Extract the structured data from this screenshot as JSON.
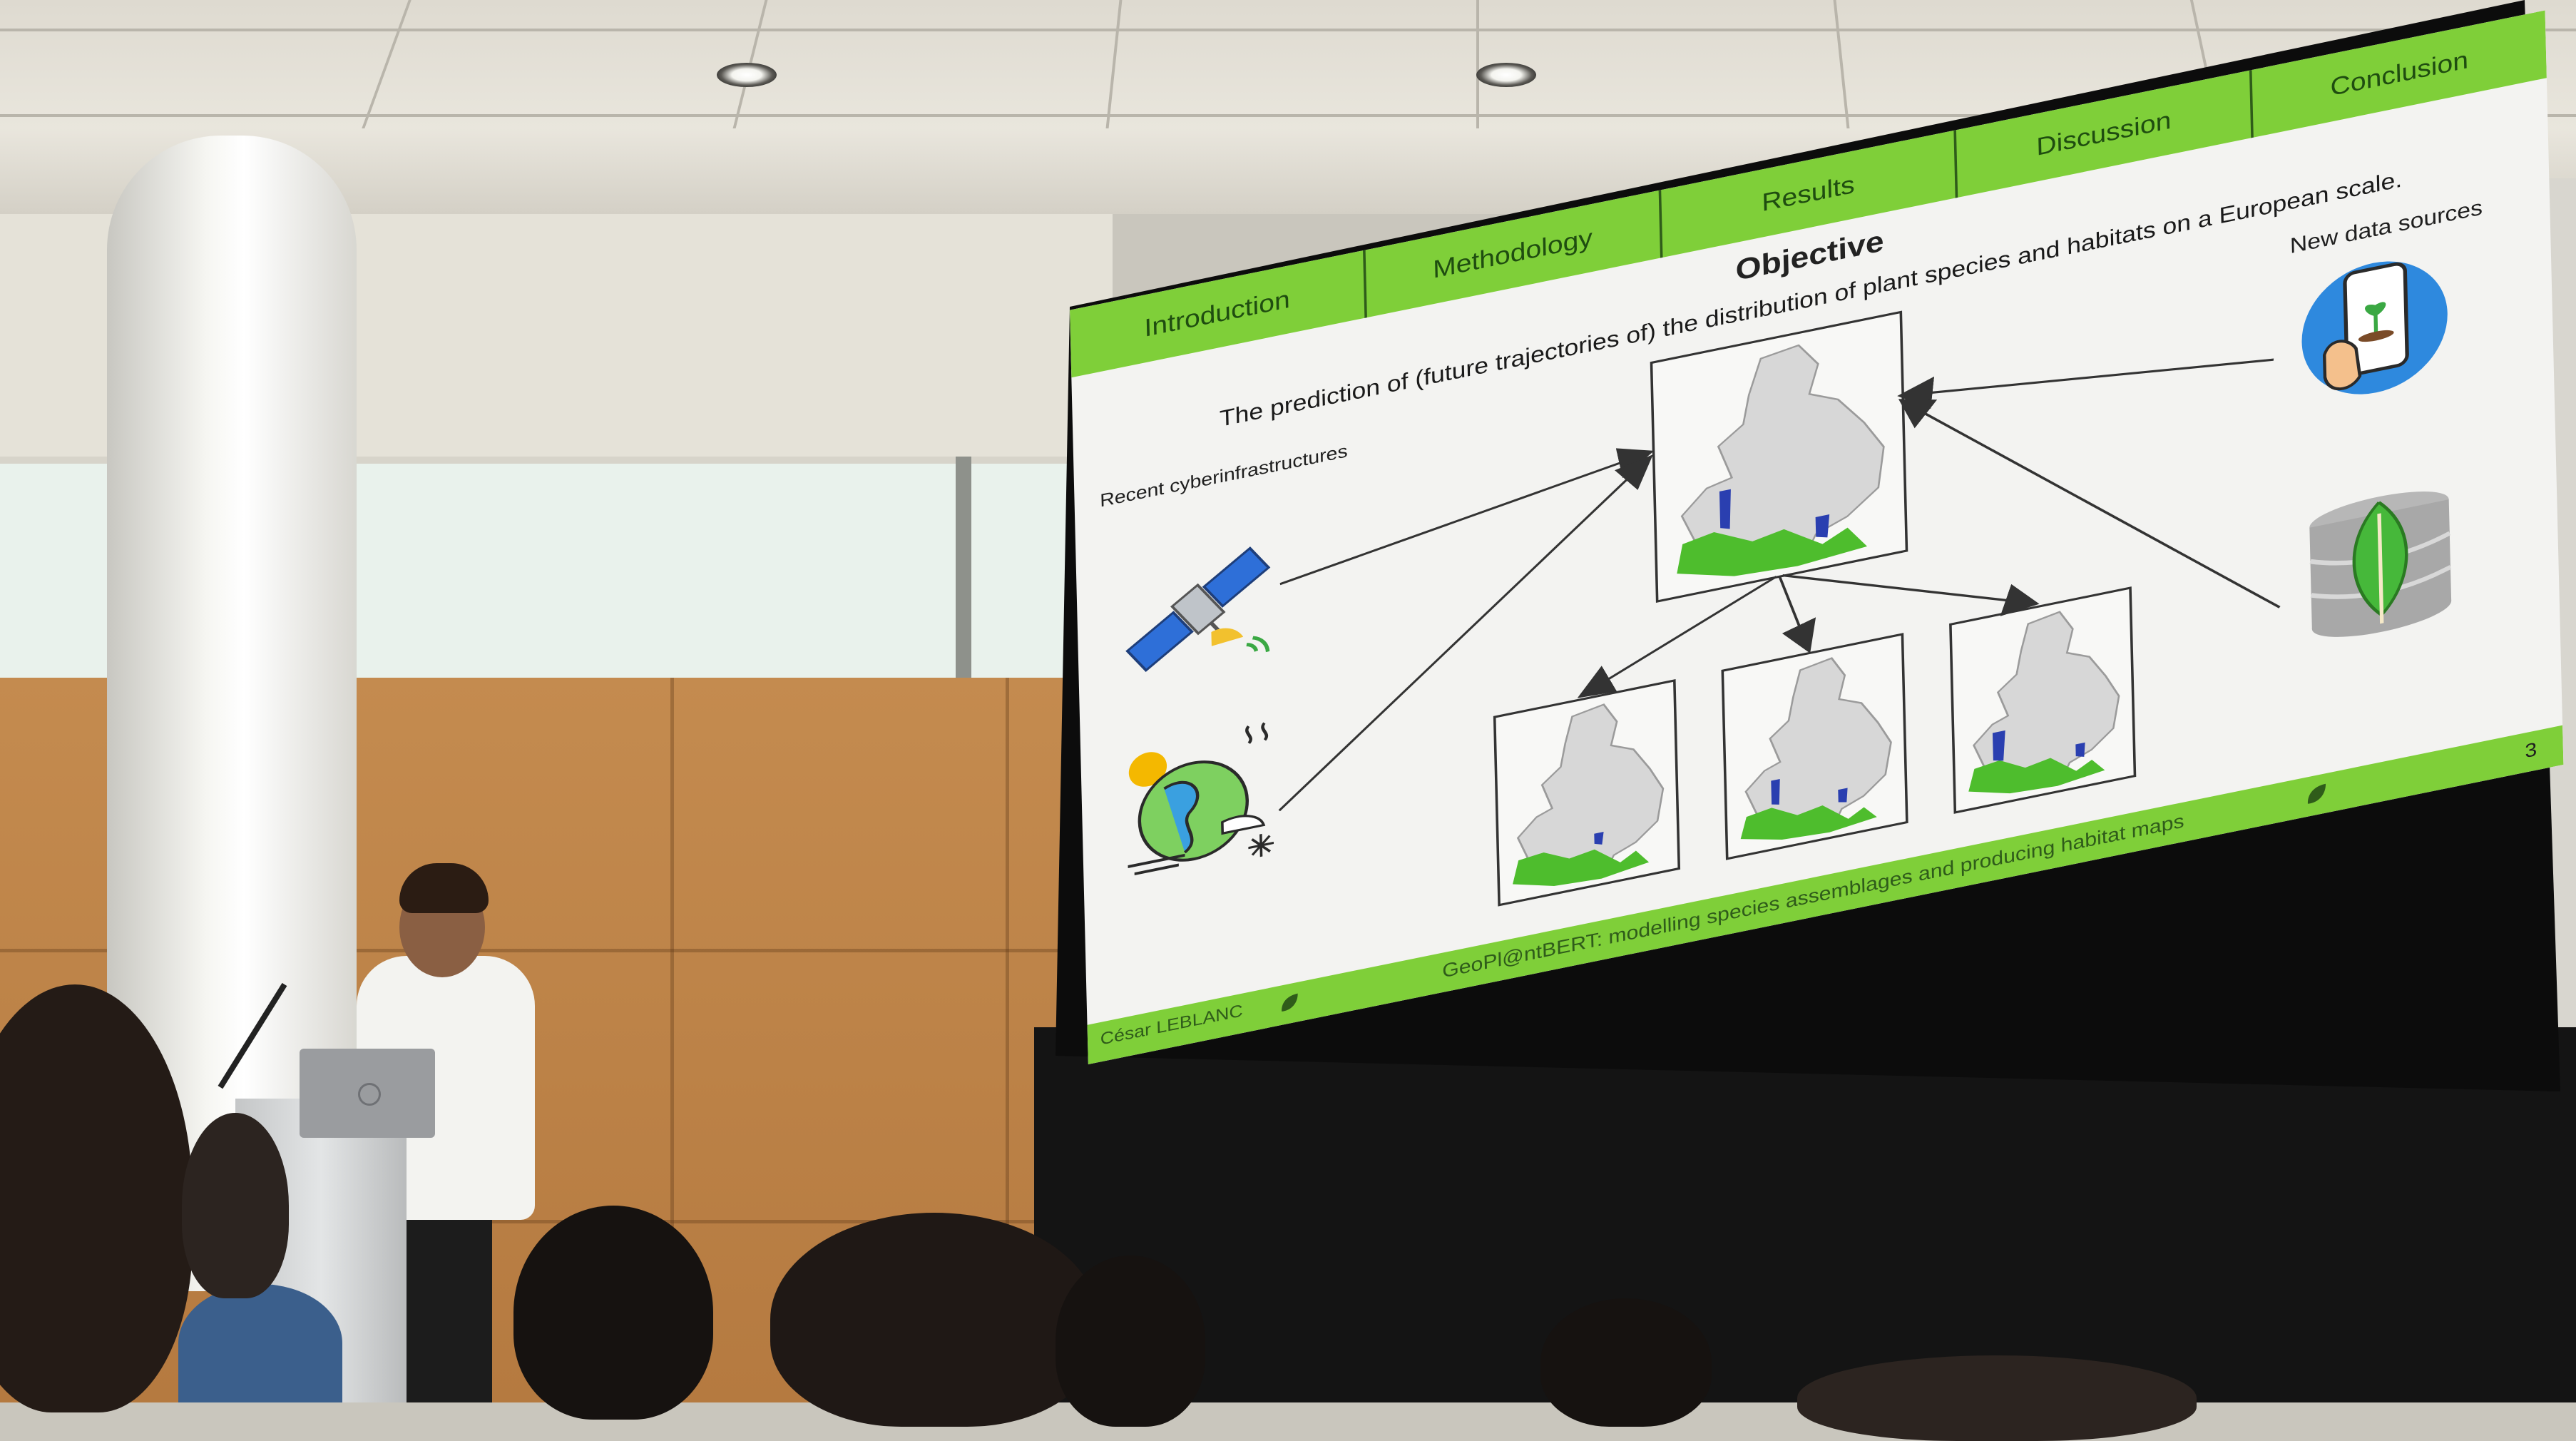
{
  "slide": {
    "nav_tabs": [
      {
        "label": "Introduction"
      },
      {
        "label": "Methodology"
      },
      {
        "label": "Results"
      },
      {
        "label": "Discussion"
      },
      {
        "label": "Conclusion"
      }
    ],
    "title": "Objective",
    "subtitle": "The prediction of (future trajectories of) the distribution of plant species and habitats on a European scale.",
    "left_label": "Recent cyberinfrastructures",
    "right_label": "New data sources",
    "footer_author": "César LEBLANC",
    "footer_title": "GeoPl@ntBERT: modelling species assemblages and producing habitat maps",
    "page_number": "3"
  },
  "colors": {
    "accent_green": "#7fcf39",
    "tab_text": "#1f4d10",
    "map_land": "#d7d7d7",
    "habitat_green": "#4ebd2d",
    "habitat_blue": "#2a3fb0"
  },
  "icons": [
    "satellite-icon",
    "climate-globe-icon",
    "smartphone-plant-icon",
    "database-leaf-icon",
    "europe-map-icon",
    "leaf-icon"
  ]
}
